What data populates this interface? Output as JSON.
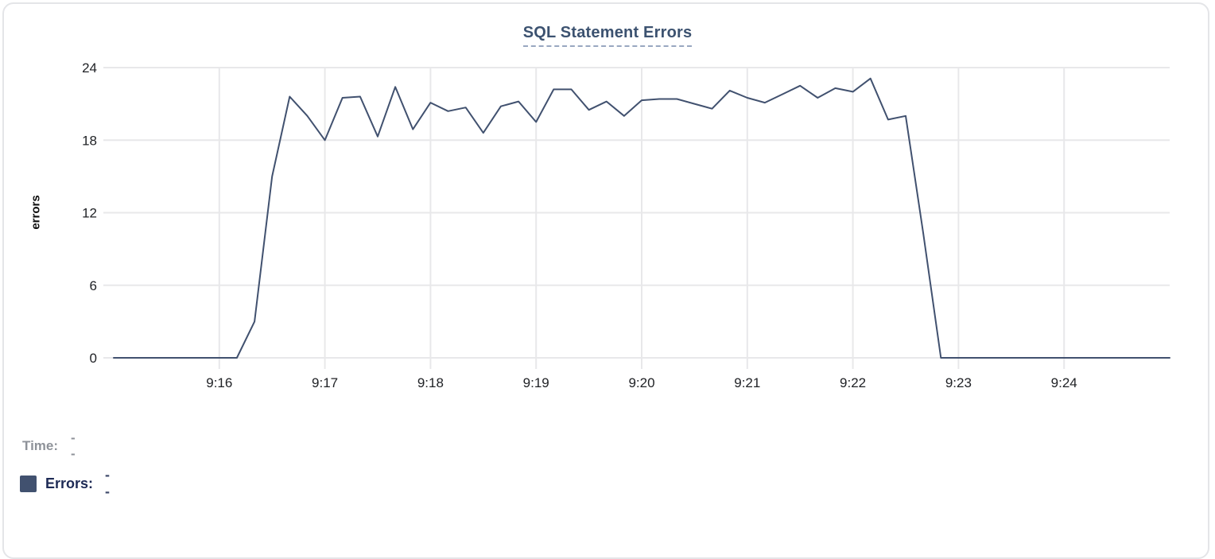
{
  "chart_data": {
    "type": "line",
    "title": "SQL Statement Errors",
    "xlabel": "",
    "ylabel": "errors",
    "ylim": [
      0,
      24
    ],
    "y_ticks": [
      0,
      6,
      12,
      18,
      24
    ],
    "x_tick_labels": [
      "9:16",
      "9:17",
      "9:18",
      "9:19",
      "9:20",
      "9:21",
      "9:22",
      "9:23",
      "9:24"
    ],
    "x_start": "9:15:00",
    "x_end": "9:25:00",
    "interval_seconds": 10,
    "grid": true,
    "legend_position": "bottom-left",
    "series": [
      {
        "name": "Errors",
        "color": "#41516f",
        "values": [
          0,
          0,
          0,
          0,
          0,
          0,
          0,
          0,
          3,
          15,
          21.6,
          20,
          18,
          21.5,
          21.6,
          18.3,
          22.4,
          18.9,
          21.1,
          20.4,
          20.7,
          18.6,
          20.8,
          21.2,
          19.5,
          22.2,
          22.2,
          20.5,
          21.2,
          20,
          21.3,
          21.4,
          21.4,
          21,
          20.6,
          22.1,
          21.5,
          21.1,
          21.8,
          22.5,
          21.5,
          22.3,
          22,
          23.1,
          19.7,
          20,
          10.3,
          0,
          0,
          0,
          0,
          0,
          0,
          0,
          0,
          0,
          0,
          0,
          0,
          0,
          0
        ]
      }
    ]
  },
  "legend": {
    "time_label": "Time:",
    "time_value": "--",
    "errors_label": "Errors:",
    "errors_value": "--"
  },
  "colors": {
    "line": "#41516f",
    "swatch": "#41516f",
    "gridline": "#e8e8ea",
    "title": "#3c5270"
  }
}
